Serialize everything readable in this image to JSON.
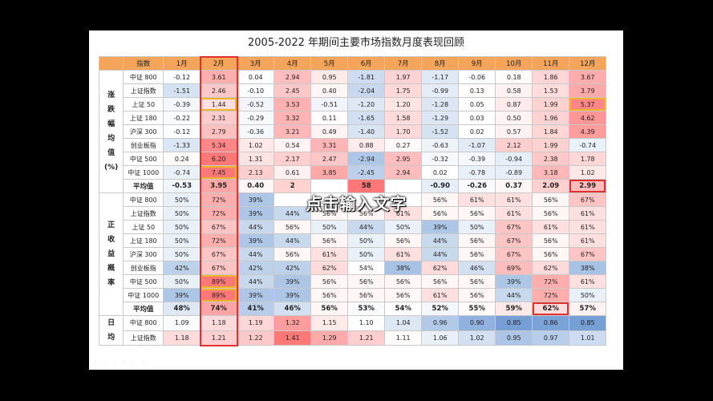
{
  "title": "2005-2022 年期间主要市场指数月度表现回顾",
  "overlay_text": "点击输入文字",
  "header": {
    "index_label": "指数",
    "months": [
      "1月",
      "2月",
      "3月",
      "4月",
      "5月",
      "6月",
      "7月",
      "8月",
      "9月",
      "10月",
      "11月",
      "12月"
    ]
  },
  "sections": [
    {
      "label": "涨跌幅均值(%)",
      "rows": [
        {
          "name": "中证 800",
          "values": [
            "-0.12",
            "3.61",
            "0.04",
            "2.94",
            "0.95",
            "-1.81",
            "1.97",
            "-1.17",
            "-0.06",
            "0.18",
            "1.86",
            "3.67"
          ]
        },
        {
          "name": "上证指数",
          "values": [
            "-1.51",
            "2.46",
            "-0.10",
            "2.45",
            "0.40",
            "-2.04",
            "1.75",
            "-0.99",
            "0.13",
            "0.58",
            "1.53",
            "3.79"
          ]
        },
        {
          "name": "上证 50",
          "values": [
            "-0.39",
            "1.44",
            "-0.52",
            "3.53",
            "-0.51",
            "-1.20",
            "1.20",
            "-1.28",
            "0.05",
            "0.87",
            "1.99",
            "5.37"
          ]
        },
        {
          "name": "上证 180",
          "values": [
            "-0.22",
            "2.31",
            "-0.29",
            "3.32",
            "0.11",
            "-1.65",
            "1.58",
            "-1.29",
            "0.03",
            "0.50",
            "1.96",
            "4.62"
          ]
        },
        {
          "name": "沪深 300",
          "values": [
            "-0.12",
            "2.79",
            "-0.36",
            "3.21",
            "0.49",
            "-1.40",
            "1.70",
            "-1.52",
            "0.02",
            "0.57",
            "1.84",
            "4.39"
          ]
        },
        {
          "name": "创业板指",
          "values": [
            "-1.33",
            "5.34",
            "1.02",
            "0.54",
            "3.31",
            "0.88",
            "0.27",
            "-0.63",
            "-1.07",
            "2.12",
            "1.99",
            "-0.74"
          ]
        },
        {
          "name": "中证 500",
          "values": [
            "0.24",
            "6.20",
            "1.31",
            "2.17",
            "2.47",
            "-2.94",
            "2.95",
            "-0.32",
            "-0.39",
            "-0.94",
            "2.38",
            "1.78"
          ]
        },
        {
          "name": "中证 1000",
          "values": [
            "-0.74",
            "7.45",
            "2.13",
            "0.61",
            "3.85",
            "-2.45",
            "2.94",
            "0.02",
            "-0.78",
            "-0.89",
            "3.18",
            "1.02"
          ]
        }
      ],
      "avg": {
        "name": "平均值",
        "values": [
          "-0.53",
          "3.95",
          "0.40",
          "2",
          "",
          "58",
          "",
          "-0.90",
          "-0.26",
          "0.37",
          "2.09",
          "2.99"
        ]
      }
    },
    {
      "label": "正收益概率",
      "rows": [
        {
          "name": "中证 800",
          "values": [
            "50%",
            "72%",
            "39%",
            "",
            "",
            "",
            "",
            "56%",
            "61%",
            "61%",
            "56%",
            "67%"
          ]
        },
        {
          "name": "上证指数",
          "values": [
            "50%",
            "72%",
            "39%",
            "44%",
            "56%",
            "56%",
            "61%",
            "56%",
            "56%",
            "61%",
            "56%",
            "61%"
          ]
        },
        {
          "name": "上证 50",
          "values": [
            "50%",
            "67%",
            "44%",
            "56%",
            "50%",
            "44%",
            "50%",
            "39%",
            "50%",
            "67%",
            "61%",
            "61%"
          ]
        },
        {
          "name": "上证 180",
          "values": [
            "50%",
            "72%",
            "39%",
            "44%",
            "56%",
            "50%",
            "56%",
            "44%",
            "56%",
            "67%",
            "56%",
            "61%"
          ]
        },
        {
          "name": "沪深 300",
          "values": [
            "50%",
            "67%",
            "44%",
            "56%",
            "61%",
            "50%",
            "61%",
            "44%",
            "56%",
            "67%",
            "56%",
            "67%"
          ]
        },
        {
          "name": "创业板指",
          "values": [
            "42%",
            "67%",
            "42%",
            "42%",
            "62%",
            "54%",
            "38%",
            "62%",
            "46%",
            "69%",
            "62%",
            "38%"
          ]
        },
        {
          "name": "中证 500",
          "values": [
            "50%",
            "89%",
            "44%",
            "39%",
            "56%",
            "56%",
            "56%",
            "56%",
            "56%",
            "39%",
            "72%",
            "61%"
          ]
        },
        {
          "name": "中证 1000",
          "values": [
            "39%",
            "89%",
            "39%",
            "39%",
            "56%",
            "56%",
            "56%",
            "61%",
            "56%",
            "44%",
            "72%",
            "50%"
          ]
        }
      ],
      "avg": {
        "name": "平均值",
        "values": [
          "48%",
          "74%",
          "41%",
          "46%",
          "56%",
          "53%",
          "54%",
          "52%",
          "55%",
          "59%",
          "62%",
          "57%"
        ]
      }
    },
    {
      "label": "日均",
      "rows": [
        {
          "name": "中证 800",
          "values": [
            "1.09",
            "1.18",
            "1.19",
            "1.32",
            "1.15",
            "1.10",
            "1.04",
            "0.96",
            "0.90",
            "0.85",
            "0.86",
            "0.85"
          ]
        },
        {
          "name": "上证指数",
          "values": [
            "1.18",
            "1.21",
            "1.22",
            "1.41",
            "1.29",
            "1.21",
            "1.11",
            "1.06",
            "1.02",
            "0.95",
            "0.97",
            "1.01"
          ]
        }
      ]
    }
  ],
  "colors": {
    "header": "#f5a55b",
    "positive_strong": "#f08080",
    "negative_strong": "#5b8fd0",
    "highlight_yellow": "#f2b32a",
    "highlight_red": "#e03030"
  }
}
